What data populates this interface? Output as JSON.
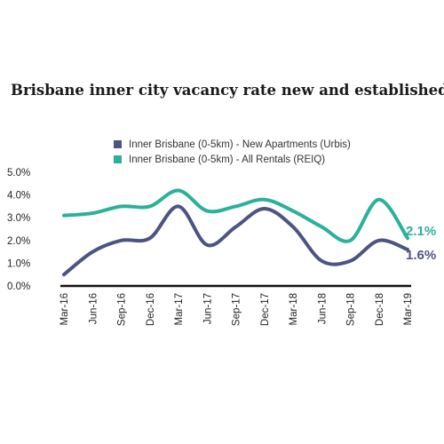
{
  "title": "Brisbane inner city vacancy rate new and established",
  "chart_data": {
    "type": "line",
    "title": "Brisbane inner city vacancy rate new and established",
    "x_tick_labels": [
      "Mar-16",
      "Jun-16",
      "Sep-16",
      "Dec-16",
      "Mar-17",
      "Jun-17",
      "Sep-17",
      "Dec-17",
      "Mar-18",
      "Jun-18",
      "Sep-18",
      "Dec-18",
      "Mar-19"
    ],
    "y_tick_labels": [
      "0.0%",
      "1.0%",
      "2.0%",
      "3.0%",
      "4.0%",
      "5.0%"
    ],
    "ylim": [
      0,
      5
    ],
    "grid": false,
    "legend_position": "top-center",
    "series": [
      {
        "name": "Inner Brisbane (0-5km) - New Apartments (Urbis)",
        "color": "#4d5383",
        "values": [
          0.5,
          1.5,
          2.0,
          2.1,
          3.5,
          1.8,
          2.6,
          3.4,
          2.6,
          1.1,
          1.1,
          2.0,
          1.6
        ],
        "end_label": "1.6%"
      },
      {
        "name": "Inner Brisbane (0-5km) - All Rentals (REIQ)",
        "color": "#2ab19a",
        "values": [
          3.1,
          3.2,
          3.5,
          3.5,
          4.2,
          3.3,
          3.5,
          3.8,
          3.3,
          2.6,
          2.0,
          3.8,
          2.1
        ],
        "end_label": "2.1%"
      }
    ]
  }
}
